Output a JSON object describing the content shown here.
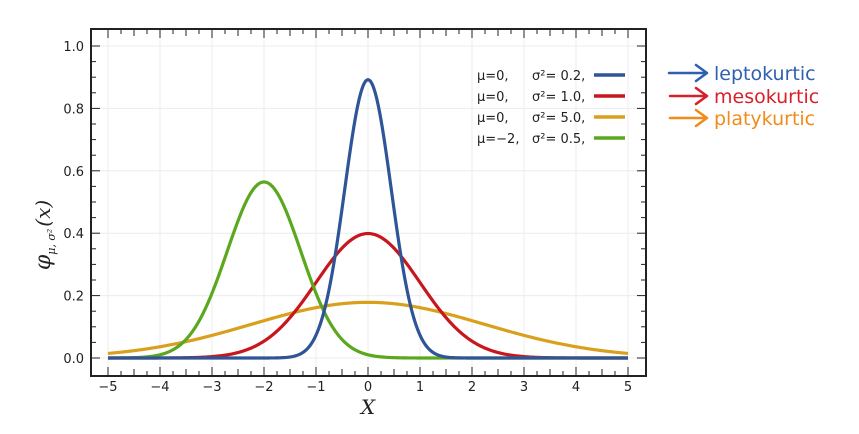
{
  "chart_data": {
    "type": "line",
    "title": "",
    "xlabel": "X",
    "ylabel": "φ_{μ,σ²}(x)",
    "xlim": [
      -5,
      5
    ],
    "ylim": [
      0,
      1.0
    ],
    "x_ticks": [
      "−5",
      "−4",
      "−3",
      "−2",
      "−1",
      "0",
      "1",
      "2",
      "3",
      "4",
      "5"
    ],
    "y_ticks": [
      "0.0",
      "0.2",
      "0.4",
      "0.6",
      "0.8",
      "1.0"
    ],
    "grid": true,
    "legend_position": "upper right",
    "series": [
      {
        "name": "μ=0,  σ²= 0.2,",
        "mu": 0,
        "variance": 0.2,
        "color": "#2f5597",
        "peak": 0.892
      },
      {
        "name": "μ=0,  σ²= 1.0,",
        "mu": 0,
        "variance": 1.0,
        "color": "#c8161d",
        "peak": 0.399
      },
      {
        "name": "μ=0,  σ²= 5.0,",
        "mu": 0,
        "variance": 5.0,
        "color": "#d9a01e",
        "peak": 0.178
      },
      {
        "name": "μ=−2,  σ²= 0.5,",
        "mu": -2,
        "variance": 0.5,
        "color": "#5aa81e",
        "peak": 0.564
      }
    ],
    "annotations": [
      {
        "text": "leptokurtic",
        "color": "#2f5fb0",
        "points_to": "σ²=0.2"
      },
      {
        "text": "mesokurtic",
        "color": "#d8202a",
        "points_to": "σ²=1.0"
      },
      {
        "text": "platykurtic",
        "color": "#f08c1c",
        "points_to": "σ²=5.0"
      }
    ]
  },
  "legend": {
    "items": [
      {
        "mu": "μ=0,",
        "sigma": "σ²= 0.2,",
        "color": "#2f5597"
      },
      {
        "mu": "μ=0,",
        "sigma": "σ²= 1.0,",
        "color": "#c8161d"
      },
      {
        "mu": "μ=0,",
        "sigma": "σ²= 5.0,",
        "color": "#d9a01e"
      },
      {
        "mu": "μ=−2,",
        "sigma": "σ²= 0.5,",
        "color": "#5aa81e"
      }
    ]
  },
  "annotations": [
    {
      "label": "leptokurtic",
      "color": "#2f5fb0"
    },
    {
      "label": "mesokurtic",
      "color": "#d8202a"
    },
    {
      "label": "platykurtic",
      "color": "#f08c1c"
    }
  ],
  "axes": {
    "xlabel": "X",
    "ylabel_main": "φ",
    "ylabel_sub": "μ, σ²",
    "ylabel_arg": "(x)"
  }
}
